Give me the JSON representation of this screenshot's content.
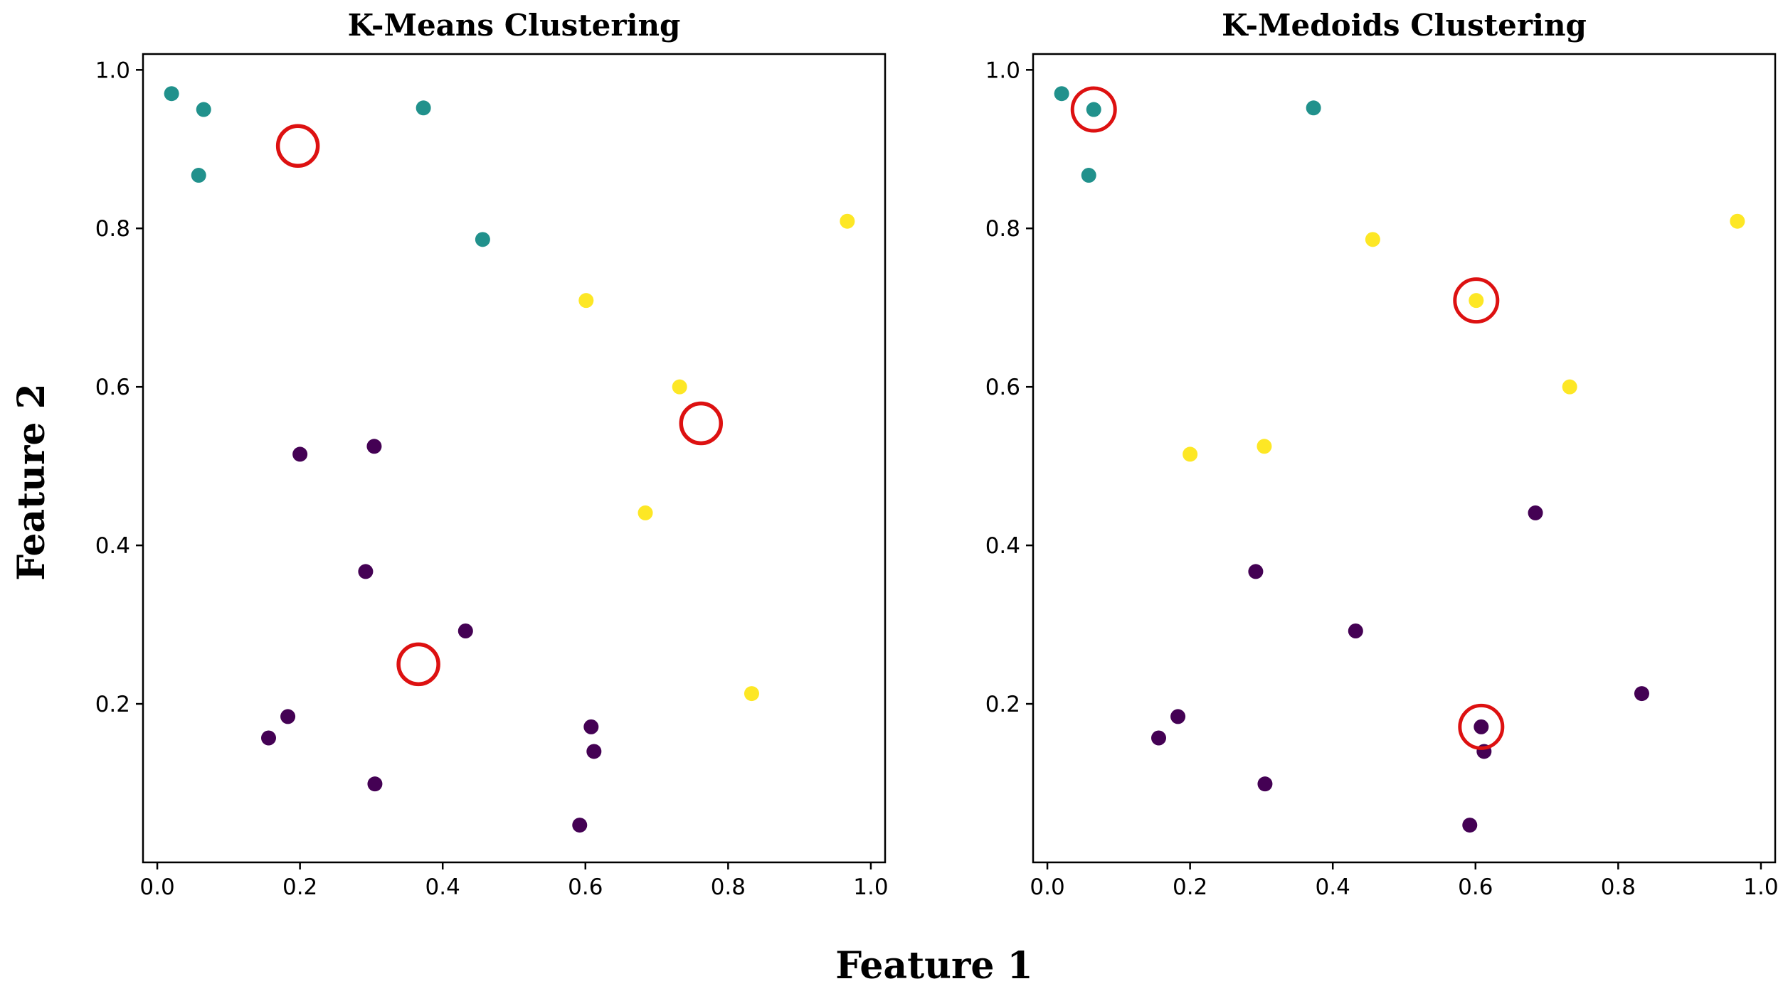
{
  "figure": {
    "xlabel": "Feature 1",
    "ylabel": "Feature 2"
  },
  "colors": {
    "cluster_purple": "#440154",
    "cluster_teal": "#21918c",
    "cluster_yellow": "#fde725",
    "center_marker": "#dd1111"
  },
  "chart_data": [
    {
      "type": "scatter",
      "title": "K-Means Clustering",
      "xlim": [
        -0.02,
        1.02
      ],
      "ylim": [
        0.0,
        1.02
      ],
      "xticks": [
        0.0,
        0.2,
        0.4,
        0.6,
        0.8,
        1.0
      ],
      "xtick_labels": [
        "0.0",
        "0.2",
        "0.4",
        "0.6",
        "0.8",
        "1.0"
      ],
      "yticks": [
        0.2,
        0.4,
        0.6,
        0.8,
        1.0
      ],
      "ytick_labels": [
        "0.2",
        "0.4",
        "0.6",
        "0.8",
        "1.0"
      ],
      "points": [
        {
          "x": 0.02,
          "y": 0.97,
          "cluster": "teal"
        },
        {
          "x": 0.065,
          "y": 0.95,
          "cluster": "teal"
        },
        {
          "x": 0.058,
          "y": 0.867,
          "cluster": "teal"
        },
        {
          "x": 0.373,
          "y": 0.952,
          "cluster": "teal"
        },
        {
          "x": 0.456,
          "y": 0.786,
          "cluster": "teal"
        },
        {
          "x": 0.967,
          "y": 0.809,
          "cluster": "yellow"
        },
        {
          "x": 0.601,
          "y": 0.709,
          "cluster": "yellow"
        },
        {
          "x": 0.732,
          "y": 0.6,
          "cluster": "yellow"
        },
        {
          "x": 0.684,
          "y": 0.441,
          "cluster": "yellow"
        },
        {
          "x": 0.833,
          "y": 0.213,
          "cluster": "yellow"
        },
        {
          "x": 0.2,
          "y": 0.515,
          "cluster": "purple"
        },
        {
          "x": 0.304,
          "y": 0.525,
          "cluster": "purple"
        },
        {
          "x": 0.292,
          "y": 0.367,
          "cluster": "purple"
        },
        {
          "x": 0.432,
          "y": 0.292,
          "cluster": "purple"
        },
        {
          "x": 0.183,
          "y": 0.184,
          "cluster": "purple"
        },
        {
          "x": 0.156,
          "y": 0.157,
          "cluster": "purple"
        },
        {
          "x": 0.608,
          "y": 0.171,
          "cluster": "purple"
        },
        {
          "x": 0.612,
          "y": 0.14,
          "cluster": "purple"
        },
        {
          "x": 0.305,
          "y": 0.099,
          "cluster": "purple"
        },
        {
          "x": 0.592,
          "y": 0.047,
          "cluster": "purple"
        }
      ],
      "centers": [
        {
          "x": 0.197,
          "y": 0.904
        },
        {
          "x": 0.762,
          "y": 0.554
        },
        {
          "x": 0.366,
          "y": 0.25
        }
      ]
    },
    {
      "type": "scatter",
      "title": "K-Medoids Clustering",
      "xlim": [
        -0.02,
        1.02
      ],
      "ylim": [
        0.0,
        1.02
      ],
      "xticks": [
        0.0,
        0.2,
        0.4,
        0.6,
        0.8,
        1.0
      ],
      "xtick_labels": [
        "0.0",
        "0.2",
        "0.4",
        "0.6",
        "0.8",
        "1.0"
      ],
      "yticks": [
        0.2,
        0.4,
        0.6,
        0.8,
        1.0
      ],
      "ytick_labels": [
        "0.2",
        "0.4",
        "0.6",
        "0.8",
        "1.0"
      ],
      "points": [
        {
          "x": 0.02,
          "y": 0.97,
          "cluster": "teal"
        },
        {
          "x": 0.065,
          "y": 0.95,
          "cluster": "teal"
        },
        {
          "x": 0.058,
          "y": 0.867,
          "cluster": "teal"
        },
        {
          "x": 0.373,
          "y": 0.952,
          "cluster": "teal"
        },
        {
          "x": 0.456,
          "y": 0.786,
          "cluster": "yellow"
        },
        {
          "x": 0.967,
          "y": 0.809,
          "cluster": "yellow"
        },
        {
          "x": 0.601,
          "y": 0.709,
          "cluster": "yellow"
        },
        {
          "x": 0.732,
          "y": 0.6,
          "cluster": "yellow"
        },
        {
          "x": 0.2,
          "y": 0.515,
          "cluster": "yellow"
        },
        {
          "x": 0.304,
          "y": 0.525,
          "cluster": "yellow"
        },
        {
          "x": 0.684,
          "y": 0.441,
          "cluster": "purple"
        },
        {
          "x": 0.292,
          "y": 0.367,
          "cluster": "purple"
        },
        {
          "x": 0.432,
          "y": 0.292,
          "cluster": "purple"
        },
        {
          "x": 0.833,
          "y": 0.213,
          "cluster": "purple"
        },
        {
          "x": 0.183,
          "y": 0.184,
          "cluster": "purple"
        },
        {
          "x": 0.156,
          "y": 0.157,
          "cluster": "purple"
        },
        {
          "x": 0.608,
          "y": 0.171,
          "cluster": "purple"
        },
        {
          "x": 0.612,
          "y": 0.14,
          "cluster": "purple"
        },
        {
          "x": 0.305,
          "y": 0.099,
          "cluster": "purple"
        },
        {
          "x": 0.592,
          "y": 0.047,
          "cluster": "purple"
        }
      ],
      "centers": [
        {
          "x": 0.065,
          "y": 0.95
        },
        {
          "x": 0.601,
          "y": 0.709
        },
        {
          "x": 0.608,
          "y": 0.171
        }
      ]
    }
  ]
}
